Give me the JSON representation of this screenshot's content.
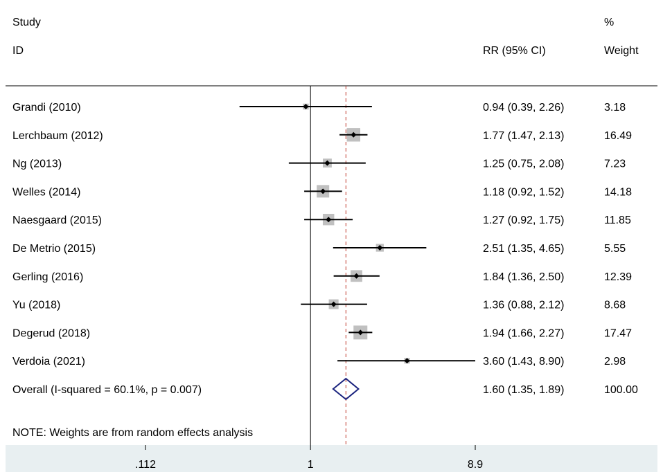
{
  "colors": {
    "axis_bg": "#e8eff1",
    "box_fill": "#c0c0c0",
    "ref_line": "#c0392b",
    "diamond": "#1a237e",
    "line": "#000000"
  },
  "headers": {
    "study_top": "Study",
    "study_bottom": "ID",
    "rr": "RR (95% CI)",
    "weight_top": "%",
    "weight_bottom": "Weight"
  },
  "note": "NOTE: Weights are from random effects analysis",
  "chart_data": {
    "type": "forest",
    "x_scale": "log",
    "xlim": [
      0.112,
      8.9
    ],
    "null_value": 1,
    "pooled_reference": 1.6,
    "xticks": [
      {
        "value": 0.112,
        "label": ".112"
      },
      {
        "value": 1,
        "label": "1"
      },
      {
        "value": 8.9,
        "label": "8.9"
      }
    ],
    "studies": [
      {
        "label": "Grandi  (2010)",
        "rr": 0.94,
        "lo": 0.39,
        "hi": 2.26,
        "ci_text": "0.94 (0.39, 2.26)",
        "weight": 3.18,
        "weight_text": "3.18"
      },
      {
        "label": "Lerchbaum  (2012)",
        "rr": 1.77,
        "lo": 1.47,
        "hi": 2.13,
        "ci_text": "1.77 (1.47, 2.13)",
        "weight": 16.49,
        "weight_text": "16.49"
      },
      {
        "label": "Ng (2013)",
        "rr": 1.25,
        "lo": 0.75,
        "hi": 2.08,
        "ci_text": "1.25 (0.75, 2.08)",
        "weight": 7.23,
        "weight_text": "7.23"
      },
      {
        "label": "Welles (2014)",
        "rr": 1.18,
        "lo": 0.92,
        "hi": 1.52,
        "ci_text": "1.18 (0.92, 1.52)",
        "weight": 14.18,
        "weight_text": "14.18"
      },
      {
        "label": "Naesgaard  (2015)",
        "rr": 1.27,
        "lo": 0.92,
        "hi": 1.75,
        "ci_text": "1.27 (0.92, 1.75)",
        "weight": 11.85,
        "weight_text": "11.85"
      },
      {
        "label": "De Metrio (2015)",
        "rr": 2.51,
        "lo": 1.35,
        "hi": 4.65,
        "ci_text": "2.51 (1.35, 4.65)",
        "weight": 5.55,
        "weight_text": "5.55"
      },
      {
        "label": "Gerling (2016)",
        "rr": 1.84,
        "lo": 1.36,
        "hi": 2.5,
        "ci_text": "1.84 (1.36, 2.50)",
        "weight": 12.39,
        "weight_text": "12.39"
      },
      {
        "label": "Yu  (2018)",
        "rr": 1.36,
        "lo": 0.88,
        "hi": 2.12,
        "ci_text": "1.36 (0.88, 2.12)",
        "weight": 8.68,
        "weight_text": "8.68"
      },
      {
        "label": "Degerud (2018)",
        "rr": 1.94,
        "lo": 1.66,
        "hi": 2.27,
        "ci_text": "1.94 (1.66, 2.27)",
        "weight": 17.47,
        "weight_text": "17.47"
      },
      {
        "label": "Verdoia  (2021)",
        "rr": 3.6,
        "lo": 1.43,
        "hi": 8.9,
        "ci_text": "3.60 (1.43, 8.90)",
        "weight": 2.98,
        "weight_text": "2.98"
      }
    ],
    "overall": {
      "label": "Overall  (I-squared = 60.1%, p = 0.007)",
      "rr": 1.6,
      "lo": 1.35,
      "hi": 1.89,
      "ci_text": "1.60 (1.35, 1.89)",
      "weight": 100.0,
      "weight_text": "100.00"
    }
  }
}
